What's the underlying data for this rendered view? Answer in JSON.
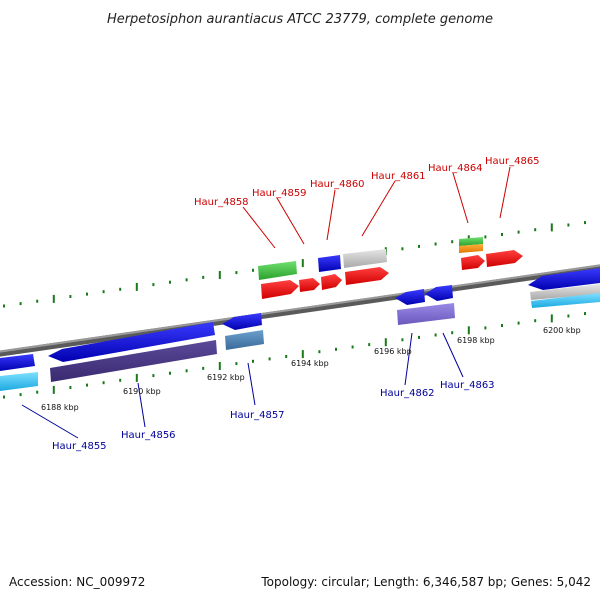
{
  "title": "Herpetosiphon aurantiacus ATCC 23779, complete genome",
  "footer": {
    "accession": "Accession: NC_009972",
    "summary": "Topology: circular; Length: 6,346,587 bp; Genes: 5,042"
  },
  "colors": {
    "forward_label": "#cc0000",
    "reverse_label": "#000099",
    "backbone": "#888888",
    "tick": "#1a7a1a"
  },
  "scale_ticks": [
    "6188 kbp",
    "6190 kbp",
    "6192 kbp",
    "6194 kbp",
    "6196 kbp",
    "6198 kbp",
    "6200 kbp"
  ],
  "forward_labels": [
    "Haur_4858",
    "Haur_4859",
    "Haur_4860",
    "Haur_4861",
    "Haur_4864",
    "Haur_4865"
  ],
  "reverse_labels": [
    "Haur_4855",
    "Haur_4856",
    "Haur_4857",
    "Haur_4862",
    "Haur_4863"
  ]
}
